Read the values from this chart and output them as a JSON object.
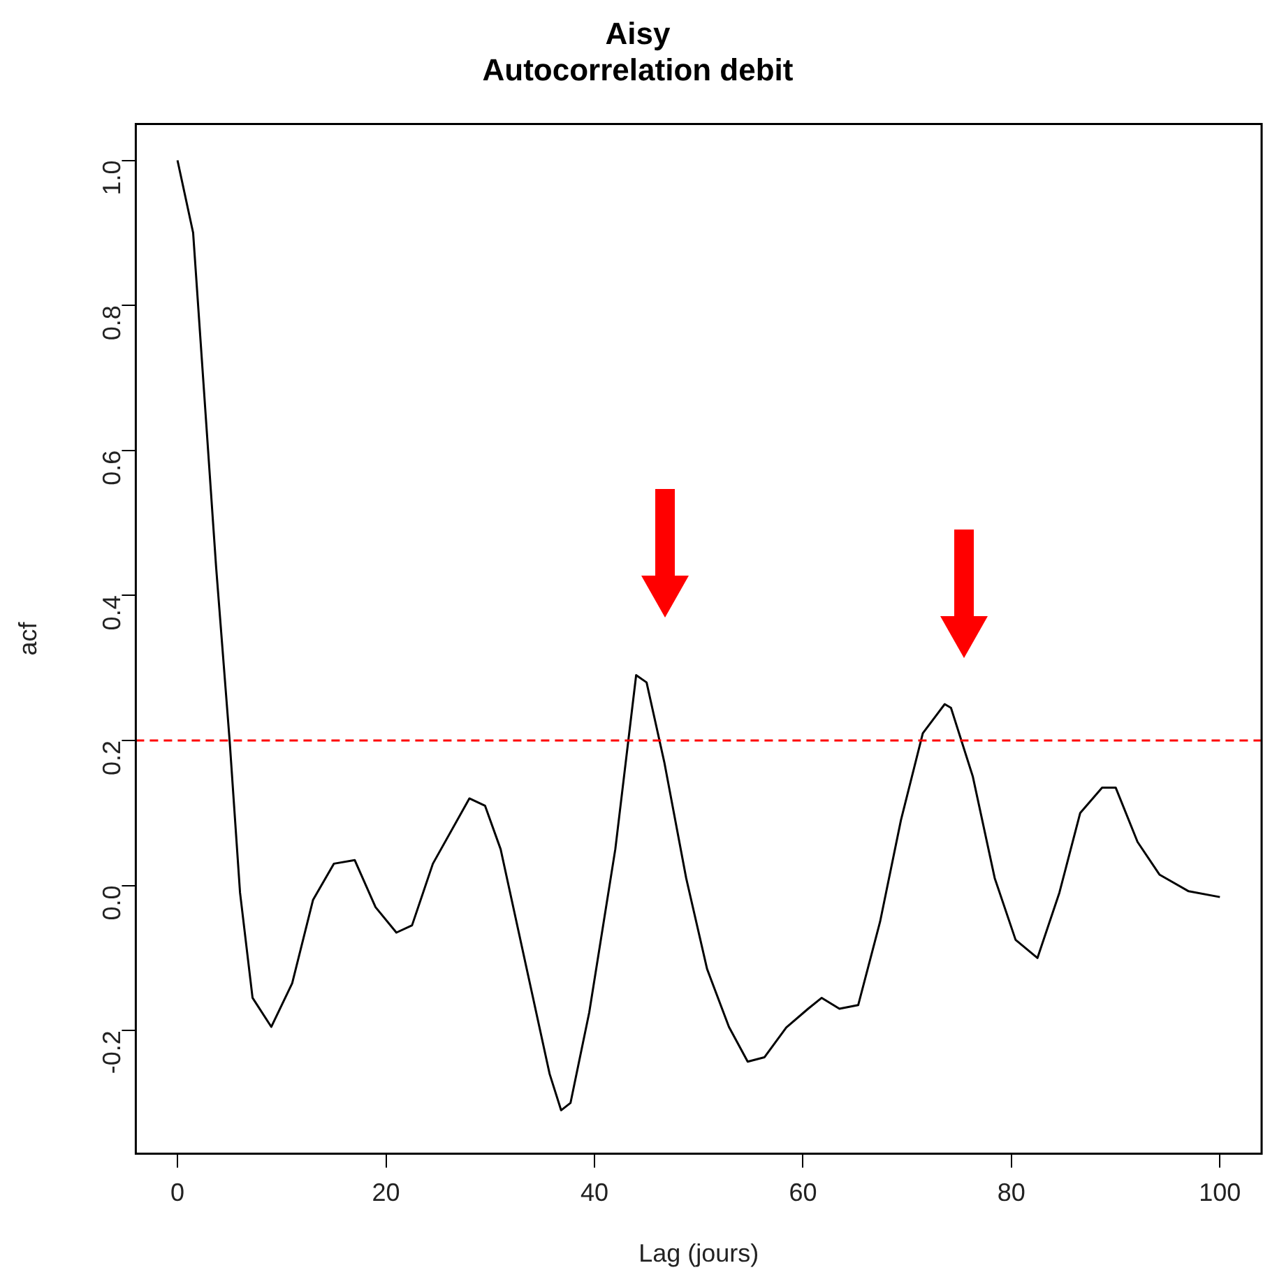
{
  "chart_data": {
    "type": "line",
    "title": "Aisy\nAutocorrelation debit",
    "xlabel": "Lag (jours)",
    "ylabel": "acf",
    "xlim": [
      -4,
      104
    ],
    "xticks": [
      0,
      20,
      40,
      60,
      80,
      100
    ],
    "ylim": [
      -0.37,
      1.05
    ],
    "yticks": [
      {
        "value": -0.2,
        "label": "-0.2"
      },
      {
        "value": 0,
        "label": "0.0"
      },
      {
        "value": 0.2,
        "label": "0.2"
      },
      {
        "value": 0.4,
        "label": "0.4"
      },
      {
        "value": 0.6,
        "label": "0.6"
      },
      {
        "value": 0.8,
        "label": "0.8"
      },
      {
        "value": 1,
        "label": "1.0"
      }
    ],
    "grid": false,
    "legend": false,
    "marker": "none",
    "line_style": "solid",
    "ref_lines": [
      {
        "axis": "y",
        "value": 0.2,
        "color": "#ff0000",
        "line_style": "dashed"
      }
    ],
    "series": [
      {
        "color": "#000000",
        "x": [
          0,
          1.5,
          3.7,
          5,
          6,
          7.2,
          9,
          11,
          13,
          15,
          17,
          19,
          21,
          22.5,
          24.5,
          28,
          29.5,
          31,
          33.5,
          35.7,
          36.8,
          37.7,
          39.5,
          42,
          44,
          45,
          46.7,
          48.8,
          50.8,
          52.9,
          54.7,
          56.3,
          58.4,
          60.5,
          61.8,
          63.5,
          65.3,
          67.4,
          69.4,
          71.5,
          73.6,
          74.2,
          76.3,
          78.4,
          80.4,
          82.5,
          84.6,
          86.6,
          88.7,
          90,
          92.1,
          94.2,
          97,
          100
        ],
        "values": [
          1,
          0.9,
          0.44,
          0.2,
          -0.01,
          -0.155,
          -0.195,
          -0.135,
          -0.02,
          0.03,
          0.035,
          -0.03,
          -0.065,
          -0.055,
          0.03,
          0.12,
          0.11,
          0.05,
          -0.115,
          -0.26,
          -0.31,
          -0.3,
          -0.175,
          0.05,
          0.29,
          0.28,
          0.17,
          0.01,
          -0.115,
          -0.195,
          -0.243,
          -0.237,
          -0.196,
          -0.17,
          -0.155,
          -0.17,
          -0.165,
          -0.05,
          0.09,
          0.21,
          0.25,
          0.245,
          0.15,
          0.01,
          -0.075,
          -0.1,
          -0.01,
          0.1,
          0.135,
          0.135,
          0.06,
          0.015,
          -0.008,
          -0.016
        ]
      }
    ]
  }
}
